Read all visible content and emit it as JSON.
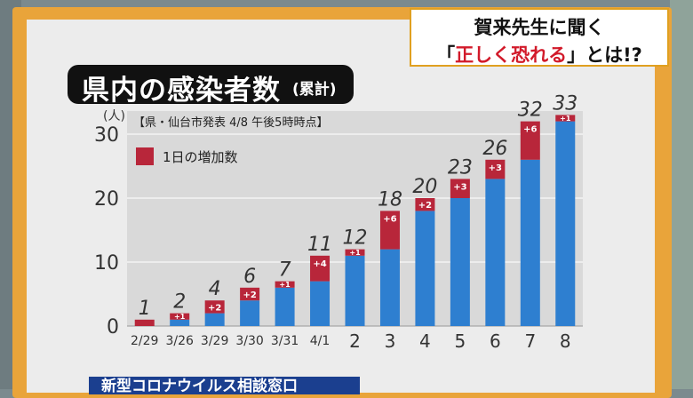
{
  "caption": {
    "line1": "賀来先生に聞く",
    "line2_open": "「",
    "line2_em": "正しく恐れる",
    "line2_close": "」とは!?"
  },
  "chart_title": {
    "main": "県内の感染者数",
    "sub": "(累計)"
  },
  "bottom_banner": "新型コロナウイルス相談窓口",
  "colors": {
    "base": "#2e7fd0",
    "increase": "#b8263a",
    "frame": "#e9a43a"
  },
  "chart_data": {
    "type": "bar",
    "stacked": true,
    "source_note": "【県・仙台市発表 4/8 午後5時時点】",
    "unit_label": "(人)",
    "categories": [
      "2/29",
      "3/26",
      "3/29",
      "3/30",
      "3/31",
      "4/1",
      "2",
      "3",
      "4",
      "5",
      "6",
      "7",
      "8"
    ],
    "totals": [
      1,
      2,
      4,
      6,
      7,
      11,
      12,
      18,
      20,
      23,
      26,
      32,
      33
    ],
    "increase_labels": [
      "",
      "+1",
      "+2",
      "+2",
      "+1",
      "+4",
      "+1",
      "+6",
      "+2",
      "+3",
      "+3",
      "+6",
      "+1"
    ],
    "series": [
      {
        "name": "",
        "values": [
          0,
          1,
          2,
          4,
          6,
          7,
          11,
          12,
          18,
          20,
          23,
          26,
          32
        ]
      },
      {
        "name": "1日の増加数",
        "values": [
          1,
          1,
          2,
          2,
          1,
          4,
          1,
          6,
          2,
          3,
          3,
          6,
          1
        ]
      }
    ],
    "yticks": [
      0,
      10,
      20,
      30
    ],
    "ylim": [
      0,
      33
    ],
    "legend": "top-left",
    "grid": true
  }
}
